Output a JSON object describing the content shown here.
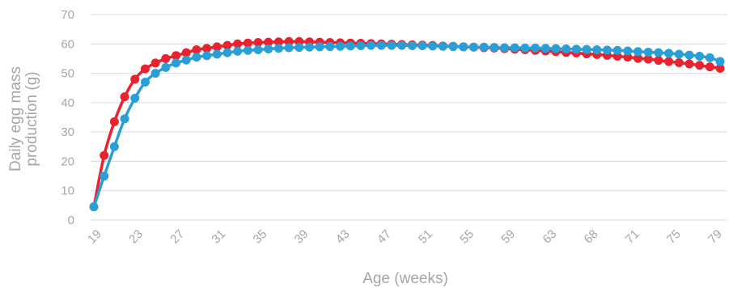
{
  "chart_data": {
    "type": "line",
    "title": "",
    "xlabel": "Age (weeks)",
    "ylabel_line1": "Daily egg mass",
    "ylabel_line2": "production (g)",
    "ylim": [
      0,
      70
    ],
    "yticks": [
      0,
      10,
      20,
      30,
      40,
      50,
      60,
      70
    ],
    "grid": true,
    "x_tick_labels": [
      "19",
      "23",
      "27",
      "31",
      "35",
      "39",
      "43",
      "47",
      "51",
      "55",
      "59",
      "63",
      "68",
      "71",
      "75",
      "79"
    ],
    "x": [
      19,
      20,
      21,
      22,
      23,
      24,
      25,
      26,
      27,
      28,
      29,
      30,
      31,
      32,
      33,
      34,
      35,
      36,
      37,
      38,
      39,
      40,
      41,
      42,
      43,
      44,
      45,
      46,
      47,
      48,
      49,
      50,
      51,
      52,
      53,
      54,
      55,
      56,
      57,
      58,
      59,
      60,
      61,
      62,
      63,
      64,
      65,
      66,
      67,
      68,
      69,
      70,
      71,
      72,
      73,
      74,
      75,
      76,
      77,
      78,
      79,
      80
    ],
    "series": [
      {
        "color": "#e8232f",
        "values": [
          4.5,
          22,
          33.5,
          42,
          48,
          51.5,
          53.5,
          55,
          56,
          57,
          58,
          58.5,
          59,
          59.5,
          60,
          60.3,
          60.5,
          60.6,
          60.7,
          60.8,
          60.8,
          60.7,
          60.6,
          60.5,
          60.4,
          60.3,
          60.2,
          60.1,
          60,
          59.9,
          59.8,
          59.7,
          59.6,
          59.5,
          59.3,
          59.2,
          59,
          58.9,
          58.7,
          58.6,
          58.4,
          58.2,
          58,
          57.8,
          57.6,
          57.4,
          57.1,
          56.9,
          56.6,
          56.4,
          56.1,
          55.8,
          55.5,
          55.1,
          54.8,
          54.4,
          54,
          53.6,
          53.2,
          52.7,
          52.2,
          51.7
        ]
      },
      {
        "color": "#2a9fd6",
        "values": [
          4.5,
          15,
          25,
          34.5,
          41.5,
          47,
          50,
          52,
          53.5,
          54.5,
          55.5,
          56,
          56.5,
          57,
          57.5,
          57.8,
          58,
          58.3,
          58.5,
          58.7,
          58.8,
          58.9,
          59,
          59.1,
          59.2,
          59.3,
          59.4,
          59.5,
          59.5,
          59.5,
          59.5,
          59.4,
          59.4,
          59.3,
          59.2,
          59.1,
          59,
          58.9,
          58.9,
          58.8,
          58.7,
          58.7,
          58.6,
          58.6,
          58.5,
          58.4,
          58.3,
          58.2,
          58.1,
          58,
          57.9,
          57.8,
          57.6,
          57.4,
          57.2,
          57,
          56.8,
          56.5,
          56.2,
          55.8,
          55.3,
          54
        ]
      }
    ]
  }
}
